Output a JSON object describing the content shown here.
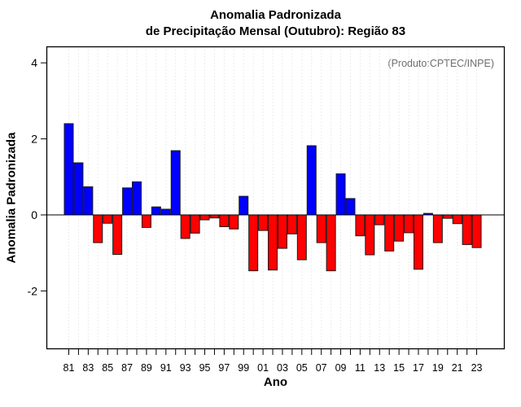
{
  "title": {
    "line1": "Anomalia Padronizada",
    "line2": "de Precipitação Mensal (Outubro): Região 83"
  },
  "annotation": "(Produto:CPTEC/INPE)",
  "colors": {
    "positive_bar": "#0000ff",
    "negative_bar": "#ff0000",
    "bar_border": "#1a1a1a",
    "gridline": "#d9d9d9",
    "axis": "#000000",
    "annotation_text": "#6e6e6e",
    "background": "#ffffff"
  },
  "chart_data": {
    "type": "bar",
    "title": "Anomalia Padronizada de Precipitação Mensal (Outubro): Região 83",
    "xlabel": "Ano",
    "ylabel": "Anomalia Padronizada",
    "categories": [
      "81",
      "82",
      "83",
      "84",
      "85",
      "86",
      "87",
      "88",
      "89",
      "90",
      "91",
      "92",
      "93",
      "94",
      "95",
      "96",
      "97",
      "98",
      "99",
      "00",
      "01",
      "02",
      "03",
      "04",
      "05",
      "06",
      "07",
      "08",
      "09",
      "10",
      "11",
      "12",
      "13",
      "14",
      "15",
      "16",
      "17",
      "18",
      "19",
      "20",
      "21",
      "22",
      "23"
    ],
    "values": [
      2.4,
      1.37,
      0.74,
      -0.73,
      -0.22,
      -1.04,
      0.71,
      0.87,
      -0.33,
      0.21,
      0.15,
      1.69,
      -0.62,
      -0.48,
      -0.13,
      -0.08,
      -0.31,
      -0.37,
      0.49,
      -1.47,
      -0.41,
      -1.45,
      -0.88,
      -0.5,
      -1.18,
      1.82,
      -0.73,
      -1.47,
      1.08,
      0.43,
      -0.55,
      -1.05,
      -0.26,
      -0.95,
      -0.69,
      -0.47,
      -1.43,
      0.04,
      -0.73,
      -0.09,
      -0.23,
      -0.78,
      -0.86
    ],
    "x_tick_label_every": 2,
    "yticks": [
      -2,
      0,
      2,
      4
    ],
    "ylim": [
      -3.53,
      4.43
    ],
    "grid": "vertical-dotted",
    "legend": "none",
    "zero_line": true
  }
}
